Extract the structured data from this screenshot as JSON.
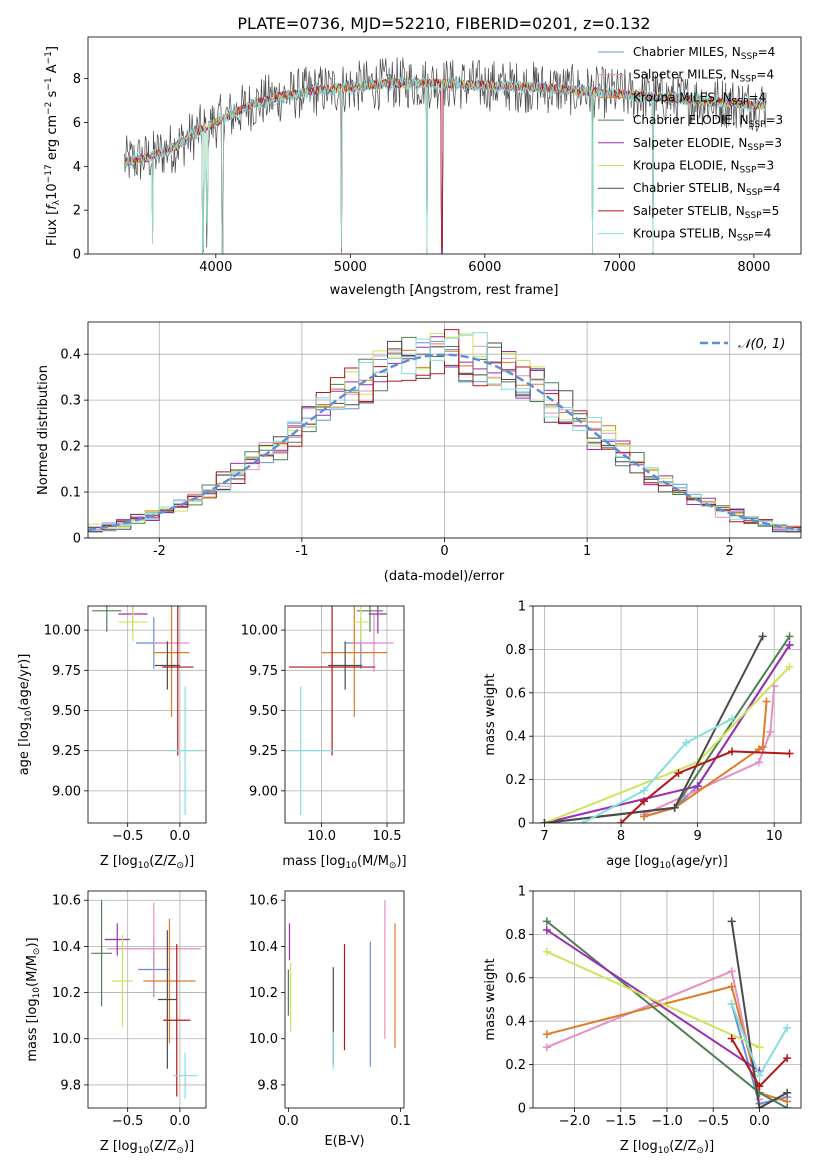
{
  "chart_data": [
    {
      "id": "spectrum",
      "type": "line",
      "title": "PLATE=0736, MJD=52210, FIBERID=0201, z=0.132",
      "xlabel": "wavelength [Angstrom, rest frame]",
      "ylabel_parts": [
        "Flux [",
        "f",
        "λ",
        "10",
        "−17",
        " erg cm",
        "−2",
        " s",
        "−1",
        " A",
        "−1",
        "]"
      ],
      "xlim": [
        3050,
        8350
      ],
      "ylim": [
        0,
        9.9
      ],
      "xticks": [
        4000,
        5000,
        6000,
        7000,
        8000
      ],
      "yticks": [
        0,
        2,
        4,
        6,
        8
      ],
      "grid": false,
      "legend_position": "top-right",
      "continuum": {
        "x": [
          3320,
          3500,
          3700,
          3900,
          4100,
          4300,
          4500,
          4800,
          5000,
          5300,
          5600,
          6000,
          6400,
          6800,
          7200,
          7600,
          8000
        ],
        "y": [
          4.2,
          4.4,
          4.9,
          5.7,
          6.3,
          6.9,
          7.2,
          7.5,
          7.6,
          7.8,
          7.8,
          7.7,
          7.6,
          7.4,
          7.2,
          7.0,
          6.8
        ]
      },
      "absorption_lines": [
        {
          "x": 3530,
          "depth": 4.0
        },
        {
          "x": 3905,
          "depth": 5.5
        },
        {
          "x": 3935,
          "depth": 4.5
        },
        {
          "x": 4050,
          "depth": 6.2
        },
        {
          "x": 4935,
          "depth": 7.6
        },
        {
          "x": 5570,
          "depth": 7.7
        },
        {
          "x": 5680,
          "depth": 7.7
        },
        {
          "x": 6800,
          "depth": 7.4
        },
        {
          "x": 7250,
          "depth": 7.1
        }
      ],
      "series": [
        {
          "name_parts": [
            "Chabrier MILES, N",
            "SSP",
            "=4"
          ],
          "color": "#6a8fd8"
        },
        {
          "name_parts": [
            "Salpeter MILES, N",
            "SSP",
            "=4"
          ],
          "color": "#e68fc6"
        },
        {
          "name_parts": [
            "Kroupa MILES, N",
            "SSP",
            "=4"
          ],
          "color": "#e07b2a"
        },
        {
          "name_parts": [
            "Chabrier ELODIE, N",
            "SSP",
            "=3"
          ],
          "color": "#4f7f55"
        },
        {
          "name_parts": [
            "Salpeter ELODIE, N",
            "SSP",
            "=3"
          ],
          "color": "#9c2fb0"
        },
        {
          "name_parts": [
            "Kroupa ELODIE, N",
            "SSP",
            "=3"
          ],
          "color": "#cfe35a"
        },
        {
          "name_parts": [
            "Chabrier STELIB, N",
            "SSP",
            "=4"
          ],
          "color": "#4a4a4a"
        },
        {
          "name_parts": [
            "Salpeter STELIB, N",
            "SSP",
            "=5"
          ],
          "color": "#b41818"
        },
        {
          "name_parts": [
            "Kroupa STELIB, N",
            "SSP",
            "=4"
          ],
          "color": "#86dede"
        }
      ]
    },
    {
      "id": "residuals",
      "type": "histogram",
      "xlabel": "(data-model)/error",
      "ylabel": "Normed distribution",
      "xlim": [
        -2.5,
        2.5
      ],
      "ylim": [
        0,
        0.47
      ],
      "xticks": [
        -2,
        -1,
        0,
        1,
        2
      ],
      "yticks": [
        0.0,
        0.1,
        0.2,
        0.3,
        0.4
      ],
      "grid": true,
      "legend_position": "top-right",
      "gaussian_label": "𝒩(0, 1)",
      "gaussian_color": "#5b8ed6",
      "bin_width": 0.1,
      "series_colors": [
        "#6a8fd8",
        "#e68fc6",
        "#e07b2a",
        "#4f7f55",
        "#9c2fb0",
        "#cfe35a",
        "#4a4a4a",
        "#b41818",
        "#86dede"
      ]
    },
    {
      "id": "z-age",
      "type": "errorbar",
      "xlabel_parts": [
        "Z [log",
        "10",
        "(Z/Z",
        "⊙",
        ")]"
      ],
      "ylabel_parts": [
        "age  [log",
        "10",
        "(age/yr)]"
      ],
      "xlim": [
        -0.88,
        0.25
      ],
      "ylim": [
        8.8,
        10.15
      ],
      "xticks": [
        -0.5,
        0.0
      ],
      "xticklabels": [
        "−0.5",
        "0.0"
      ],
      "yticks": [
        9.0,
        9.25,
        9.5,
        9.75,
        10.0
      ],
      "yticklabels": [
        "9.00",
        "9.25",
        "9.50",
        "9.75",
        "10.00"
      ],
      "grid": true,
      "points": [
        {
          "x": -0.25,
          "y": 9.92,
          "xerr": 0.17,
          "yerr": 0.16,
          "c": 0
        },
        {
          "x": -0.08,
          "y": 9.92,
          "xerr": 0.17,
          "yerr": 0.18,
          "c": 1
        },
        {
          "x": -0.08,
          "y": 9.86,
          "xerr": 0.17,
          "yerr": 0.4,
          "c": 2
        },
        {
          "x": -0.7,
          "y": 10.12,
          "xerr": 0.14,
          "yerr": 0.13,
          "c": 3
        },
        {
          "x": -0.45,
          "y": 10.1,
          "xerr": 0.14,
          "yerr": 0.12,
          "c": 4
        },
        {
          "x": -0.45,
          "y": 10.05,
          "xerr": 0.14,
          "yerr": 0.12,
          "c": 5
        },
        {
          "x": -0.12,
          "y": 9.78,
          "xerr": 0.12,
          "yerr": 0.15,
          "c": 6
        },
        {
          "x": -0.02,
          "y": 9.77,
          "xerr": 0.15,
          "yerr": 0.55,
          "c": 7
        },
        {
          "x": 0.05,
          "y": 9.25,
          "xerr": 0.15,
          "yerr": 0.4,
          "c": 8
        }
      ]
    },
    {
      "id": "mass-age",
      "type": "errorbar",
      "xlabel_parts": [
        "mass [log",
        "10",
        "(M/M",
        "⊙",
        ")]"
      ],
      "xlim": [
        9.72,
        10.63
      ],
      "ylim": [
        8.8,
        10.15
      ],
      "xticks": [
        10.0,
        10.5
      ],
      "xticklabels": [
        "10.0",
        "10.5"
      ],
      "yticks": [
        9.0,
        9.25,
        9.5,
        9.75,
        10.0
      ],
      "yticklabels": [
        "9.00",
        "9.25",
        "9.50",
        "9.75",
        "10.00"
      ],
      "grid": true,
      "points": [
        {
          "x": 10.3,
          "y": 9.92,
          "xerr": 0.12,
          "yerr": 0.16,
          "c": 0
        },
        {
          "x": 10.4,
          "y": 9.92,
          "xerr": 0.15,
          "yerr": 0.18,
          "c": 1
        },
        {
          "x": 10.25,
          "y": 9.86,
          "xerr": 0.25,
          "yerr": 0.4,
          "c": 2
        },
        {
          "x": 10.37,
          "y": 10.12,
          "xerr": 0.1,
          "yerr": 0.13,
          "c": 3
        },
        {
          "x": 10.43,
          "y": 10.1,
          "xerr": 0.07,
          "yerr": 0.12,
          "c": 4
        },
        {
          "x": 10.3,
          "y": 10.05,
          "xerr": 0.06,
          "yerr": 0.12,
          "c": 5
        },
        {
          "x": 10.18,
          "y": 9.78,
          "xerr": 0.13,
          "yerr": 0.15,
          "c": 6
        },
        {
          "x": 10.08,
          "y": 9.77,
          "xerr": 0.33,
          "yerr": 0.55,
          "c": 7
        },
        {
          "x": 9.84,
          "y": 9.25,
          "xerr": 0.25,
          "yerr": 0.4,
          "c": 8
        }
      ]
    },
    {
      "id": "age-weight",
      "type": "line",
      "xlabel_parts": [
        "age  [log",
        "10",
        "(age/yr)]"
      ],
      "ylabel": "mass weight",
      "xlim": [
        6.85,
        10.35
      ],
      "ylim": [
        0,
        1.0
      ],
      "xticks": [
        7,
        8,
        9,
        10
      ],
      "yticks": [
        0.0,
        0.2,
        0.4,
        0.6,
        0.8,
        1.0
      ],
      "grid": true,
      "series": [
        {
          "c": 0,
          "x": [
            8.3,
            8.7,
            9.0,
            10.2
          ],
          "y": [
            0.03,
            0.07,
            0.17,
            0.82
          ]
        },
        {
          "c": 1,
          "x": [
            8.3,
            9.8,
            9.95,
            10.0
          ],
          "y": [
            0.04,
            0.28,
            0.42,
            0.63
          ]
        },
        {
          "c": 2,
          "x": [
            8.3,
            8.7,
            9.8,
            9.85,
            9.9
          ],
          "y": [
            0.03,
            0.07,
            0.34,
            0.35,
            0.56
          ]
        },
        {
          "c": 3,
          "x": [
            7.0,
            8.7,
            10.2
          ],
          "y": [
            0.0,
            0.07,
            0.86
          ]
        },
        {
          "c": 4,
          "x": [
            7.0,
            9.0,
            10.2
          ],
          "y": [
            0.0,
            0.17,
            0.82
          ]
        },
        {
          "c": 5,
          "x": [
            7.0,
            9.0,
            10.2
          ],
          "y": [
            0.0,
            0.28,
            0.72
          ]
        },
        {
          "c": 6,
          "x": [
            7.0,
            8.7,
            9.85
          ],
          "y": [
            0.0,
            0.07,
            0.86
          ]
        },
        {
          "c": 7,
          "x": [
            8.0,
            8.3,
            8.75,
            9.45,
            10.2
          ],
          "y": [
            0.0,
            0.1,
            0.23,
            0.33,
            0.32
          ]
        },
        {
          "c": 8,
          "x": [
            7.5,
            8.3,
            8.85,
            9.45
          ],
          "y": [
            0.0,
            0.15,
            0.37,
            0.48
          ]
        }
      ]
    },
    {
      "id": "z-mass",
      "type": "errorbar",
      "xlabel_parts": [
        "Z [log",
        "10",
        "(Z/Z",
        "⊙",
        ")]"
      ],
      "ylabel_parts": [
        "mass [log",
        "10",
        "(M/M",
        "⊙",
        ")]"
      ],
      "xlim": [
        -0.88,
        0.25
      ],
      "ylim": [
        9.7,
        10.64
      ],
      "xticks": [
        -0.5,
        0.0
      ],
      "xticklabels": [
        "−0.5",
        "0.0"
      ],
      "yticks": [
        9.8,
        10.0,
        10.2,
        10.4,
        10.6
      ],
      "yticklabels": [
        "9.8",
        "10.0",
        "10.2",
        "10.4",
        "10.6"
      ],
      "grid": true,
      "points": [
        {
          "x": -0.25,
          "y": 10.3,
          "xerr": 0.15,
          "yerr": 0.12,
          "c": 0
        },
        {
          "x": -0.25,
          "y": 10.39,
          "xerr": 0.45,
          "yerr": 0.2,
          "c": 1
        },
        {
          "x": -0.1,
          "y": 10.25,
          "xerr": 0.25,
          "yerr": 0.27,
          "c": 2
        },
        {
          "x": -0.75,
          "y": 10.37,
          "xerr": 0.1,
          "yerr": 0.23,
          "c": 3
        },
        {
          "x": -0.6,
          "y": 10.43,
          "xerr": 0.12,
          "yerr": 0.07,
          "c": 4
        },
        {
          "x": -0.55,
          "y": 10.25,
          "xerr": 0.1,
          "yerr": 0.2,
          "c": 5
        },
        {
          "x": -0.12,
          "y": 10.17,
          "xerr": 0.09,
          "yerr": 0.3,
          "c": 6
        },
        {
          "x": -0.03,
          "y": 10.08,
          "xerr": 0.13,
          "yerr": 0.33,
          "c": 7
        },
        {
          "x": 0.05,
          "y": 9.84,
          "xerr": 0.12,
          "yerr": 0.1,
          "c": 8
        }
      ]
    },
    {
      "id": "ebv-mass",
      "type": "errorbar",
      "xlabel": "E(B-V)",
      "xlim": [
        -0.003,
        0.103
      ],
      "ylim": [
        9.7,
        10.64
      ],
      "xticks": [
        0.0,
        0.1
      ],
      "xticklabels": [
        "0.0",
        "0.1"
      ],
      "yticks": [
        9.8,
        10.0,
        10.2,
        10.4,
        10.6
      ],
      "yticklabels": [
        "9.8",
        "10.0",
        "10.2",
        "10.4",
        "10.6"
      ],
      "grid": false,
      "points": [
        {
          "x": 0.073,
          "y": 10.15,
          "xerr": 0,
          "yerr": 0.27,
          "c": 0
        },
        {
          "x": 0.086,
          "y": 10.3,
          "xerr": 0,
          "yerr": 0.3,
          "c": 1
        },
        {
          "x": 0.095,
          "y": 10.23,
          "xerr": 0,
          "yerr": 0.27,
          "c": 2
        },
        {
          "x": 0.0,
          "y": 10.2,
          "xerr": 0,
          "yerr": 0.1,
          "c": 3
        },
        {
          "x": 0.001,
          "y": 10.42,
          "xerr": 0,
          "yerr": 0.08,
          "c": 4
        },
        {
          "x": 0.002,
          "y": 10.18,
          "xerr": 0,
          "yerr": 0.15,
          "c": 5
        },
        {
          "x": 0.04,
          "y": 10.1,
          "xerr": 0,
          "yerr": 0.21,
          "c": 6
        },
        {
          "x": 0.05,
          "y": 10.18,
          "xerr": 0,
          "yerr": 0.23,
          "c": 7
        },
        {
          "x": 0.04,
          "y": 9.95,
          "xerr": 0,
          "yerr": 0.08,
          "c": 8
        }
      ]
    },
    {
      "id": "z-weight",
      "type": "line",
      "xlabel_parts": [
        "Z [log",
        "10",
        "(Z/Z",
        "⊙",
        ")]"
      ],
      "ylabel": "mass weight",
      "xlim": [
        -2.45,
        0.45
      ],
      "ylim": [
        0,
        1.0
      ],
      "xticks": [
        -2.0,
        -1.5,
        -1.0,
        -0.5,
        0.0
      ],
      "xticklabels": [
        "−2.0",
        "−1.5",
        "−1.0",
        "−0.5",
        "0.0"
      ],
      "yticks": [
        0.0,
        0.2,
        0.4,
        0.6,
        0.8,
        1.0
      ],
      "grid": true,
      "series": [
        {
          "c": 0,
          "x": [
            -0.3,
            0.0,
            0.3
          ],
          "y": [
            0.48,
            0.02,
            0.05
          ]
        },
        {
          "c": 1,
          "x": [
            -2.3,
            -0.3,
            0.0
          ],
          "y": [
            0.28,
            0.63,
            0.04
          ]
        },
        {
          "c": 2,
          "x": [
            -2.3,
            -0.3,
            0.0,
            0.3
          ],
          "y": [
            0.34,
            0.56,
            0.07,
            0.03
          ]
        },
        {
          "c": 3,
          "x": [
            -2.3,
            0.0,
            0.3
          ],
          "y": [
            0.86,
            0.07,
            0.0
          ]
        },
        {
          "c": 4,
          "x": [
            -2.3,
            0.0
          ],
          "y": [
            0.82,
            0.17
          ]
        },
        {
          "c": 5,
          "x": [
            -2.3,
            0.0
          ],
          "y": [
            0.72,
            0.28
          ]
        },
        {
          "c": 6,
          "x": [
            -0.3,
            0.0,
            0.3
          ],
          "y": [
            0.86,
            0.0,
            0.07
          ]
        },
        {
          "c": 7,
          "x": [
            -0.3,
            0.0,
            0.3
          ],
          "y": [
            0.32,
            0.1,
            0.23
          ]
        },
        {
          "c": 8,
          "x": [
            -0.3,
            0.0,
            0.3
          ],
          "y": [
            0.48,
            0.15,
            0.37
          ]
        }
      ]
    }
  ]
}
